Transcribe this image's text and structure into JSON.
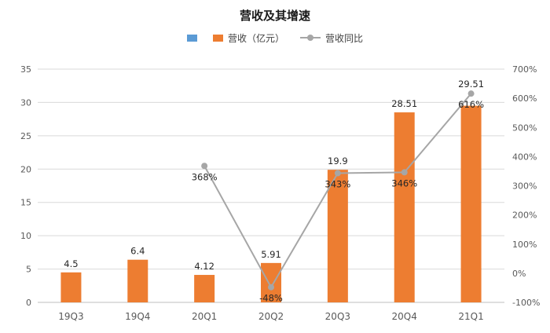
{
  "chart": {
    "title": "营收及其增速",
    "legend": [
      {
        "shape": "square",
        "color": "#5b9bd5",
        "label": ""
      },
      {
        "shape": "square",
        "color": "#ed7d31",
        "label": "营收（亿元）"
      },
      {
        "shape": "line-dot",
        "color": "#a6a6a6",
        "label": "营收同比"
      }
    ]
  },
  "chart_data": {
    "type": "bar",
    "title": "营收及其增速",
    "categories": [
      "19Q3",
      "19Q4",
      "20Q1",
      "20Q2",
      "20Q3",
      "20Q4",
      "21Q1"
    ],
    "series": [
      {
        "name": "营收（亿元）",
        "chart_type": "bar",
        "axis": "left",
        "color": "#ed7d31",
        "values": [
          4.5,
          6.4,
          4.12,
          5.91,
          19.9,
          28.51,
          29.51
        ],
        "data_labels": [
          "4.5",
          "6.4",
          "4.12",
          "5.91",
          "19.9",
          "28.51",
          "29.51"
        ]
      },
      {
        "name": "营收同比",
        "chart_type": "line",
        "axis": "right",
        "color": "#a6a6a6",
        "values": [
          null,
          null,
          368,
          -48,
          343,
          346,
          616
        ],
        "data_labels": [
          null,
          null,
          "368%",
          "-48%",
          "343%",
          "346%",
          "616%"
        ]
      }
    ],
    "left_axis": {
      "min": 0,
      "max": 35,
      "step": 5,
      "tick_labels": [
        "0",
        "5",
        "10",
        "15",
        "20",
        "25",
        "30",
        "35"
      ]
    },
    "right_axis": {
      "min": -100,
      "max": 700,
      "step": 100,
      "tick_labels": [
        "700%",
        "600%",
        "500%",
        "400%",
        "300%",
        "200%",
        "100%",
        "0%",
        "-100%"
      ]
    },
    "grid": true,
    "legend_position": "top",
    "colors": {
      "grid": "#d9d9d9",
      "baseline": "#bfbfbf",
      "axis_text": "#595959",
      "label_text": "#262626"
    }
  }
}
